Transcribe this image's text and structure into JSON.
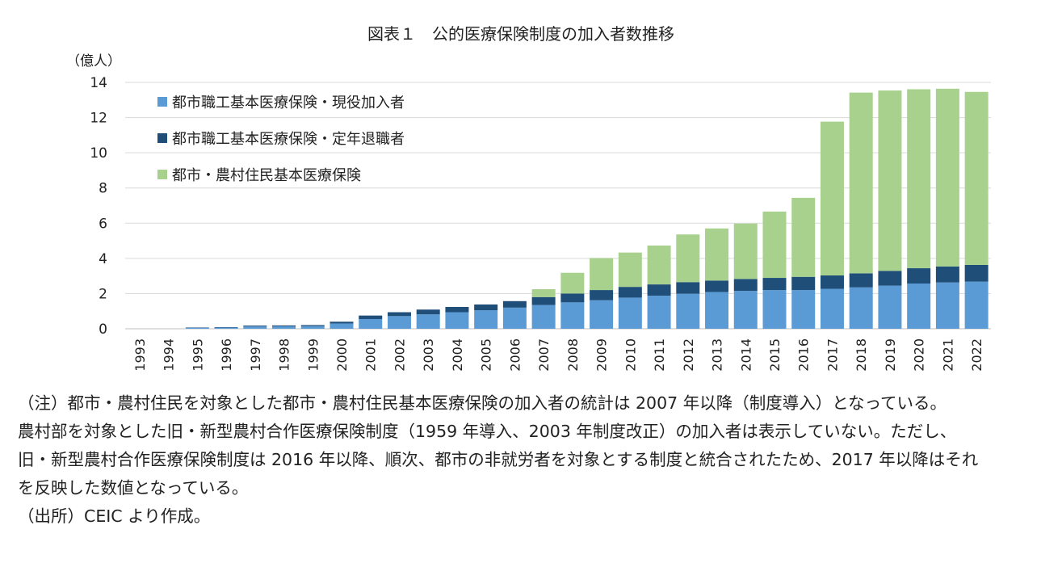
{
  "chart_data": {
    "type": "bar",
    "stacked": true,
    "title": "図表１　公的医療保険制度の加入者数推移",
    "ylabel": "（億人）",
    "ylim": [
      0,
      14
    ],
    "yticks": [
      0,
      2,
      4,
      6,
      8,
      10,
      12,
      14
    ],
    "grid": true,
    "legend_position": "top-left",
    "categories": [
      "1993",
      "1994",
      "1995",
      "1996",
      "1997",
      "1998",
      "1999",
      "2000",
      "2001",
      "2002",
      "2003",
      "2004",
      "2005",
      "2006",
      "2007",
      "2008",
      "2009",
      "2010",
      "2011",
      "2012",
      "2013",
      "2014",
      "2015",
      "2016",
      "2017",
      "2018",
      "2019",
      "2020",
      "2021",
      "2022"
    ],
    "series": [
      {
        "name": "都市職工基本医療保険・現役加入者",
        "color": "#5B9BD5",
        "values": [
          0,
          0,
          0.05,
          0.07,
          0.13,
          0.14,
          0.15,
          0.3,
          0.55,
          0.72,
          0.82,
          0.94,
          1.05,
          1.2,
          1.35,
          1.5,
          1.62,
          1.77,
          1.88,
          1.99,
          2.09,
          2.15,
          2.2,
          2.2,
          2.27,
          2.35,
          2.45,
          2.57,
          2.63,
          2.68
        ]
      },
      {
        "name": "都市職工基本医療保険・定年退職者",
        "color": "#1F4E79",
        "values": [
          0,
          0,
          0.02,
          0.02,
          0.05,
          0.05,
          0.06,
          0.1,
          0.2,
          0.22,
          0.27,
          0.3,
          0.33,
          0.37,
          0.45,
          0.5,
          0.58,
          0.61,
          0.64,
          0.66,
          0.65,
          0.68,
          0.69,
          0.75,
          0.76,
          0.8,
          0.84,
          0.87,
          0.91,
          0.95
        ]
      },
      {
        "name": "都市・農村住民基本医療保険",
        "color": "#A9D18E",
        "values": [
          0,
          0,
          0,
          0,
          0,
          0,
          0,
          0,
          0,
          0,
          0,
          0,
          0,
          0,
          0.45,
          1.18,
          1.82,
          1.95,
          2.21,
          2.71,
          2.96,
          3.15,
          3.77,
          4.49,
          8.74,
          10.27,
          10.25,
          10.17,
          10.1,
          9.83
        ]
      }
    ]
  },
  "notes": [
    "（注）都市・農村住民を対象とした都市・農村住民基本医療保険の加入者の統計は 2007 年以降（制度導入）となっている。",
    "農村部を対象とした旧・新型農村合作医療保険制度（1959 年導入、2003 年制度改正）の加入者は表示していない。ただし、",
    "旧・新型農村合作医療保険制度は 2016 年以降、順次、都市の非就労者を対象とする制度と統合されたため、2017 年以降はそれ",
    "を反映した数値となっている。",
    "（出所）CEIC より作成。"
  ]
}
